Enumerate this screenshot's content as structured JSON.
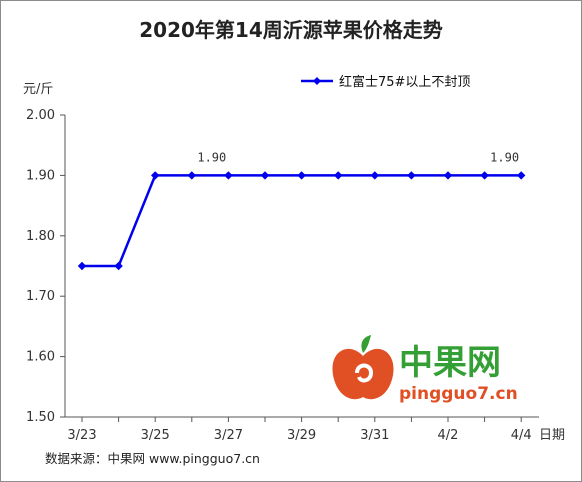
{
  "chart_data": {
    "type": "line",
    "title": "2020年第14周沂源苹果价格走势",
    "ylabel": "元/斤",
    "xlabel": "日期",
    "ylim": [
      1.5,
      2.0
    ],
    "yticks": [
      "1.50",
      "1.60",
      "1.70",
      "1.80",
      "1.90",
      "2.00"
    ],
    "x": [
      "3/23",
      "3/24",
      "3/25",
      "3/26",
      "3/27",
      "3/28",
      "3/29",
      "3/30",
      "3/31",
      "4/1",
      "4/2",
      "4/3",
      "4/4"
    ],
    "xtick_labels": [
      "3/23",
      "3/25",
      "3/27",
      "3/29",
      "3/31",
      "4/2",
      "4/4"
    ],
    "series": [
      {
        "name": "红富士75#以上不封顶",
        "values": [
          1.75,
          1.75,
          1.9,
          1.9,
          1.9,
          1.9,
          1.9,
          1.9,
          1.9,
          1.9,
          1.9,
          1.9,
          1.9
        ],
        "color": "#0000ee"
      }
    ],
    "data_labels": [
      {
        "index": 3,
        "text": "1.90"
      },
      {
        "index": 11,
        "text": "1.90"
      }
    ],
    "legend_position": "top-right",
    "grid": false
  },
  "source": "数据来源：中果网 www.pingguo7.cn",
  "watermark": {
    "name": "中果网",
    "url": "pingguo7.cn",
    "colors": {
      "green": "#2a9a2a",
      "red": "#e0461a"
    }
  }
}
